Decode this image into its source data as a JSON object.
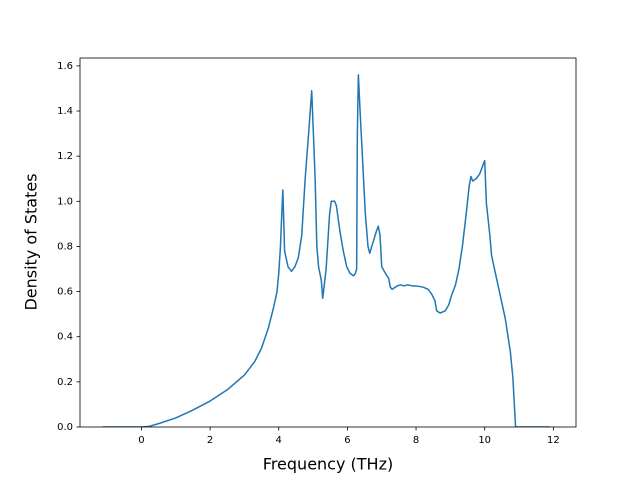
{
  "chart_data": {
    "type": "line",
    "xlabel": "Frequency (THz)",
    "ylabel": "Density of States",
    "xlim": [
      -1.79,
      12.66
    ],
    "ylim": [
      0,
      1.635
    ],
    "xticks": [
      0,
      2,
      4,
      6,
      8,
      10,
      12
    ],
    "yticks": [
      {
        "value": 0,
        "label": "0.0"
      },
      {
        "value": 0.2,
        "label": "0.2"
      },
      {
        "value": 0.4,
        "label": "0.4"
      },
      {
        "value": 0.6,
        "label": "0.6"
      },
      {
        "value": 0.8,
        "label": "0.8"
      },
      {
        "value": 1,
        "label": "1.0"
      },
      {
        "value": 1.2,
        "label": "1.2"
      },
      {
        "value": 1.4,
        "label": "1.4"
      },
      {
        "value": 1.6,
        "label": "1.6"
      }
    ],
    "grid": false,
    "series": [
      {
        "color": "#1f77b4",
        "x": [
          -1.13,
          0,
          0.2,
          0.5,
          1,
          1.5,
          2,
          2.5,
          3,
          3.3,
          3.5,
          3.7,
          3.85,
          3.95,
          4.0,
          4.05,
          4.09,
          4.12,
          4.17,
          4.27,
          4.37,
          4.47,
          4.57,
          4.67,
          4.77,
          4.87,
          4.96,
          5.01,
          5.06,
          5.11,
          5.16,
          5.24,
          5.28,
          5.38,
          5.48,
          5.53,
          5.63,
          5.68,
          5.78,
          5.88,
          5.98,
          6.08,
          6.18,
          6.23,
          6.27,
          6.29,
          6.32,
          6.37,
          6.42,
          6.52,
          6.6,
          6.65,
          6.75,
          6.85,
          6.9,
          6.95,
          7.0,
          7.15,
          7.2,
          7.25,
          7.3,
          7.45,
          7.55,
          7.65,
          7.75,
          7.9,
          8.0,
          8.2,
          8.35,
          8.45,
          8.55,
          8.6,
          8.7,
          8.85,
          8.95,
          9.05,
          9.15,
          9.25,
          9.35,
          9.45,
          9.55,
          9.6,
          9.65,
          9.75,
          9.85,
          9.95,
          10.0,
          10.05,
          10.15,
          10.2,
          10.4,
          10.6,
          10.75,
          10.82,
          10.9,
          11.9
        ],
        "values": [
          0,
          0,
          0.002,
          0.015,
          0.04,
          0.075,
          0.115,
          0.165,
          0.23,
          0.29,
          0.35,
          0.44,
          0.53,
          0.6,
          0.68,
          0.8,
          0.95,
          1.05,
          0.78,
          0.71,
          0.69,
          0.71,
          0.75,
          0.85,
          1.1,
          1.3,
          1.49,
          1.3,
          1.1,
          0.8,
          0.71,
          0.65,
          0.57,
          0.7,
          0.94,
          1.0,
          1.0,
          0.98,
          0.87,
          0.78,
          0.71,
          0.68,
          0.67,
          0.68,
          0.7,
          1.3,
          1.56,
          1.4,
          1.25,
          0.95,
          0.8,
          0.77,
          0.82,
          0.87,
          0.89,
          0.85,
          0.71,
          0.67,
          0.66,
          0.62,
          0.61,
          0.625,
          0.63,
          0.625,
          0.63,
          0.625,
          0.625,
          0.62,
          0.61,
          0.59,
          0.56,
          0.515,
          0.505,
          0.515,
          0.54,
          0.59,
          0.63,
          0.7,
          0.8,
          0.93,
          1.07,
          1.11,
          1.09,
          1.1,
          1.12,
          1.16,
          1.18,
          0.99,
          0.85,
          0.76,
          0.62,
          0.48,
          0.33,
          0.22,
          0,
          0
        ]
      }
    ]
  }
}
